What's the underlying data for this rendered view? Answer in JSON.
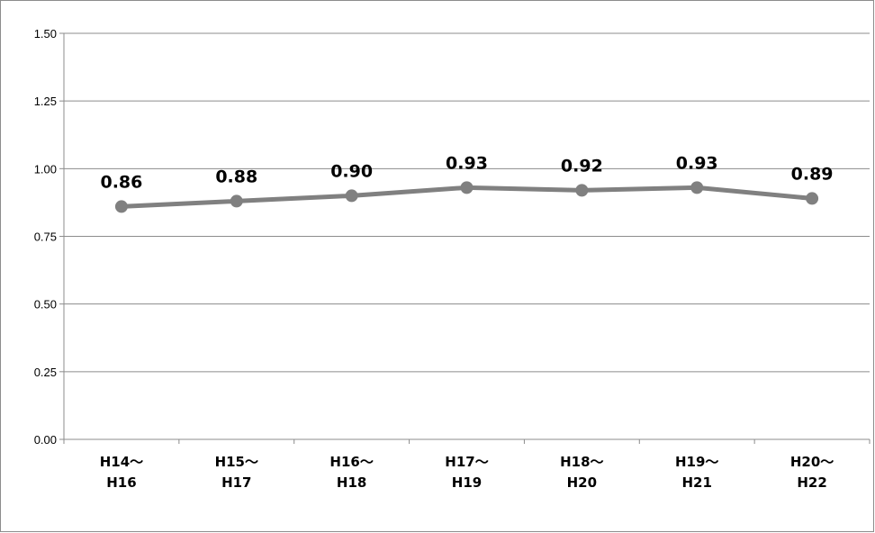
{
  "chart_data": {
    "type": "line",
    "categories": [
      [
        "H14～",
        "H16"
      ],
      [
        "H15～",
        "H17"
      ],
      [
        "H16～",
        "H18"
      ],
      [
        "H17～",
        "H19"
      ],
      [
        "H18～",
        "H20"
      ],
      [
        "H19～",
        "H21"
      ],
      [
        "H20～",
        "H22"
      ]
    ],
    "series": [
      {
        "values": [
          0.86,
          0.88,
          0.9,
          0.93,
          0.92,
          0.93,
          0.89
        ],
        "data_labels": [
          "0.86",
          "0.88",
          "0.90",
          "0.93",
          "0.92",
          "0.93",
          "0.89"
        ],
        "color": "#808080"
      }
    ],
    "yticks": [
      "0.00",
      "0.25",
      "0.50",
      "0.75",
      "1.00",
      "1.25",
      "1.50"
    ],
    "ylim": [
      0,
      1.5
    ],
    "grid": true,
    "grid_color": "#8c8c8c",
    "legend": "none"
  }
}
